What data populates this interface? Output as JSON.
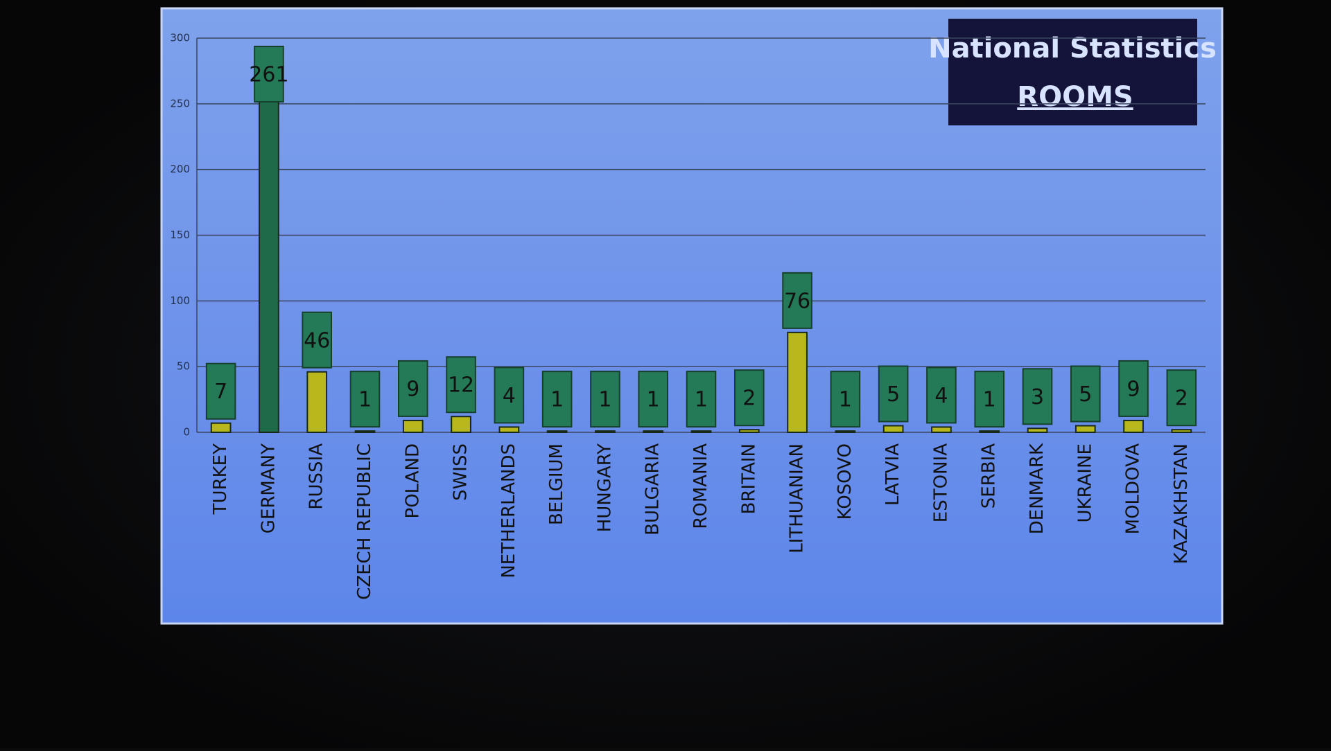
{
  "chart_data": {
    "type": "bar",
    "title": "National Statistics",
    "subtitle": "ROOMS",
    "categories": [
      "TURKEY",
      "GERMANY",
      "RUSSIA",
      "CZECH REPUBLIC",
      "POLAND",
      "SWISS",
      "NETHERLANDS",
      "BELGIUM",
      "HUNGARY",
      "BULGARIA",
      "ROMANIA",
      "BRITAIN",
      "LITHUANIAN",
      "KOSOVO",
      "LATVIA",
      "ESTONIA",
      "SERBIA",
      "DENMARK",
      "UKRAINE",
      "MOLDOVA",
      "KAZAKHSTAN"
    ],
    "values": [
      7,
      261,
      46,
      1,
      9,
      12,
      4,
      1,
      1,
      1,
      1,
      2,
      76,
      1,
      5,
      4,
      1,
      3,
      5,
      9,
      2
    ],
    "colors": [
      "#b8b81c",
      "#1f6b49",
      "#b8b81c",
      "#b8b81c",
      "#b8b81c",
      "#b8b81c",
      "#b8b81c",
      "#b8b81c",
      "#b8b81c",
      "#b8b81c",
      "#b8b81c",
      "#b8b81c",
      "#b8b81c",
      "#b8b81c",
      "#b8b81c",
      "#b8b81c",
      "#b8b81c",
      "#b8b81c",
      "#b8b81c",
      "#b8b81c",
      "#b8b81c"
    ],
    "ylim": [
      0,
      300
    ],
    "yticks": [
      0,
      50,
      100,
      150,
      200,
      250,
      300
    ],
    "grid": true
  }
}
